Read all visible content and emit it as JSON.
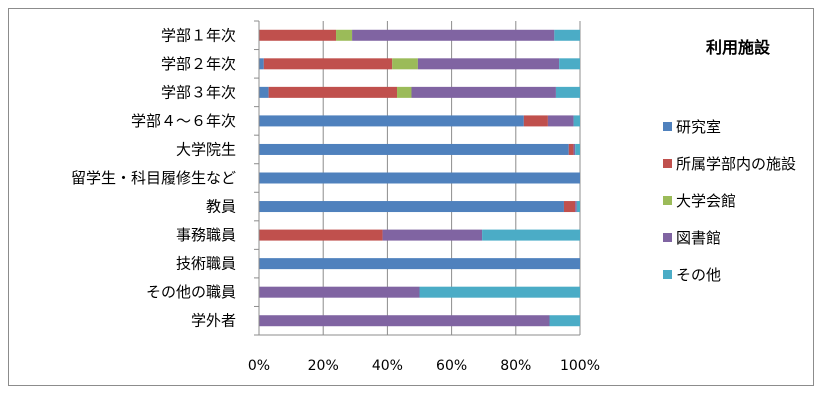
{
  "chart_data": {
    "type": "bar",
    "orientation": "horizontal",
    "stacked": "percent",
    "title": "",
    "categories": [
      "学部１年次",
      "学部２年次",
      "学部３年次",
      "学部４～６年次",
      "大学院生",
      "留学生・科目履修生など",
      "教員",
      "事務職員",
      "技術職員",
      "その他の職員",
      "学外者"
    ],
    "legend_title": "利用施設",
    "legend_position": "right",
    "grid": true,
    "xlim": [
      0,
      100
    ],
    "x_ticks": [
      "0%",
      "20%",
      "40%",
      "60%",
      "80%",
      "100%"
    ],
    "series": [
      {
        "name": "研究室",
        "color": "#4f81bd",
        "values": [
          0,
          1.5,
          3,
          82.5,
          96.5,
          100,
          95,
          0,
          100,
          0,
          0
        ]
      },
      {
        "name": "所属学部内の施設",
        "color": "#c0504d",
        "values": [
          24,
          40,
          40,
          7.5,
          1.5,
          0,
          3.5,
          38.5,
          0,
          0,
          0
        ]
      },
      {
        "name": "大学会館",
        "color": "#9bbb59",
        "values": [
          5,
          8,
          4.5,
          0,
          0,
          0,
          0,
          0,
          0,
          0,
          0
        ]
      },
      {
        "name": "図書館",
        "color": "#8064a2",
        "values": [
          63,
          44,
          45,
          8,
          0.5,
          0,
          0.5,
          31,
          0,
          50,
          90.5
        ]
      },
      {
        "name": "その他",
        "color": "#4bacc6",
        "values": [
          8,
          6.5,
          7.5,
          2,
          1.5,
          0,
          1,
          30.5,
          0,
          50,
          9.5
        ]
      }
    ]
  }
}
